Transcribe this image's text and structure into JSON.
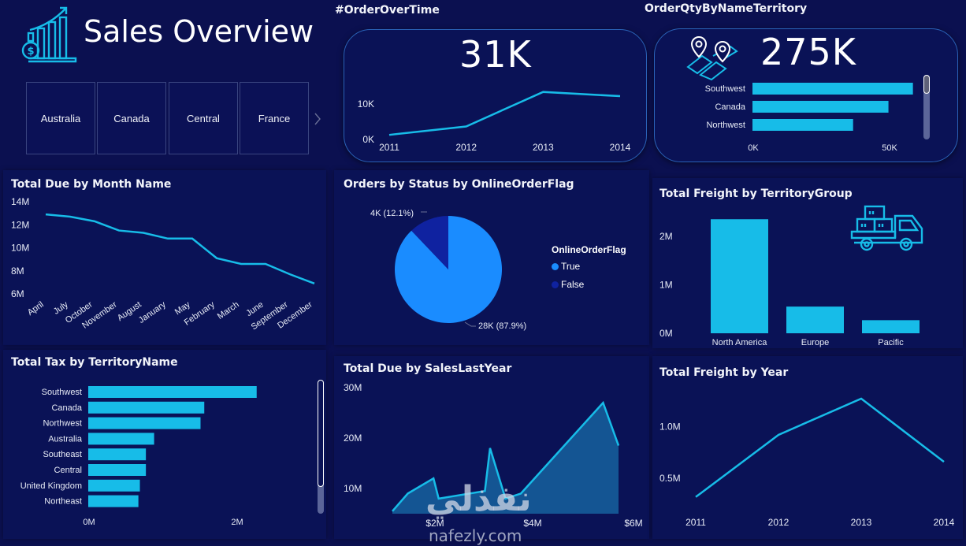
{
  "header": {
    "title": "Sales Overview",
    "icon": "sales-growth-chart-icon"
  },
  "slicer": {
    "items": [
      "Australia",
      "Canada",
      "Central",
      "France"
    ],
    "next_icon": "chevron-right-icon"
  },
  "kpi_orders": {
    "title": "#OrderOverTime",
    "value": "31K"
  },
  "kpi_qty": {
    "title": "OrderQtyByNameTerritory",
    "value": "275K",
    "icon": "map-pins-icon"
  },
  "colors": {
    "background": "#0b1050",
    "panel": "#0a1256",
    "accent": "#17bce8",
    "pie_true": "#1a8cff",
    "pie_false": "#0f22a0",
    "area_fill": "#155d9a"
  },
  "freight_icon": "delivery-truck-icon",
  "chart_data": [
    {
      "id": "orders_over_time",
      "type": "line",
      "title": "#OrderOverTime",
      "categories": [
        "2011",
        "2012",
        "2013",
        "2014"
      ],
      "values": [
        1300,
        3700,
        13500,
        12300
      ],
      "yticks": [
        "0K",
        "10K"
      ],
      "ylim": [
        0,
        15000
      ]
    },
    {
      "id": "qty_by_territory",
      "type": "bar",
      "orientation": "horizontal",
      "title": "OrderQtyByNameTerritory",
      "categories": [
        "Southwest",
        "Canada",
        "Northwest"
      ],
      "values": [
        59000,
        50000,
        37000
      ],
      "xticks": [
        "0K",
        "50K"
      ],
      "xlim": [
        0,
        62000
      ]
    },
    {
      "id": "due_by_month",
      "type": "line",
      "title": "Total Due by Month Name",
      "categories": [
        "April",
        "July",
        "October",
        "November",
        "August",
        "January",
        "May",
        "February",
        "March",
        "June",
        "September",
        "December"
      ],
      "values": [
        12.9,
        12.7,
        12.3,
        11.5,
        11.3,
        10.8,
        10.8,
        9.1,
        8.6,
        8.6,
        7.7,
        6.9
      ],
      "yticks": [
        "6M",
        "8M",
        "10M",
        "12M",
        "14M"
      ],
      "ylim": [
        6,
        14
      ],
      "unit": "M"
    },
    {
      "id": "orders_by_status",
      "type": "pie",
      "title": "Orders by Status by OnlineOrderFlag",
      "legend_title": "OnlineOrderFlag",
      "legend_position": "right",
      "slices": [
        {
          "name": "True",
          "value": 87.9,
          "label": "28K (87.9%)"
        },
        {
          "name": "False",
          "value": 12.1,
          "label": "4K (12.1%)"
        }
      ]
    },
    {
      "id": "freight_by_group",
      "type": "bar",
      "title": "Total Freight by TerritoryGroup",
      "categories": [
        "North America",
        "Europe",
        "Pacific"
      ],
      "values": [
        2.35,
        0.55,
        0.27
      ],
      "yticks": [
        "0M",
        "1M",
        "2M"
      ],
      "ylim": [
        0,
        2.5
      ],
      "unit": "M"
    },
    {
      "id": "tax_by_territory",
      "type": "bar",
      "orientation": "horizontal",
      "title": "Total Tax by TerritoryName",
      "categories": [
        "Southwest",
        "Canada",
        "Northwest",
        "Australia",
        "Southeast",
        "Central",
        "United Kingdom",
        "Northeast"
      ],
      "values": [
        2.25,
        1.55,
        1.5,
        0.88,
        0.77,
        0.77,
        0.69,
        0.67
      ],
      "xticks": [
        "0M",
        "2M"
      ],
      "xlim": [
        0,
        2.8
      ],
      "unit": "M"
    },
    {
      "id": "due_by_sales_last_year",
      "type": "area",
      "title": "Total Due by SalesLastYear",
      "x": [
        1.3,
        1.6,
        2.1,
        2.2,
        3.1,
        3.2,
        3.5,
        3.8,
        5.4,
        5.7
      ],
      "values": [
        5.5,
        9.0,
        12.0,
        8.0,
        9.5,
        18.0,
        8.0,
        9.0,
        27.0,
        18.5
      ],
      "xticks": [
        "$2M",
        "$4M",
        "$6M"
      ],
      "yticks": [
        "10M",
        "20M",
        "30M"
      ],
      "xlim": [
        1.3,
        5.7
      ],
      "ylim": [
        5,
        30
      ],
      "unit": "M"
    },
    {
      "id": "freight_by_year",
      "type": "line",
      "title": "Total Freight by Year",
      "categories": [
        "2011",
        "2012",
        "2013",
        "2014"
      ],
      "values": [
        0.32,
        0.92,
        1.27,
        0.66
      ],
      "yticks": [
        "0.5M",
        "1.0M"
      ],
      "ylim": [
        0.25,
        1.3
      ],
      "unit": "M"
    }
  ],
  "watermark": {
    "arabic": "نفذلي",
    "latin": "nafezly.com"
  }
}
